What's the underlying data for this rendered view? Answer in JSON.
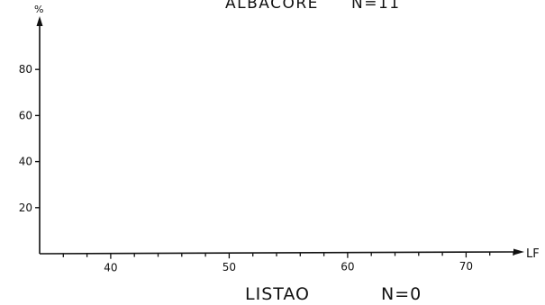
{
  "chart_data": [
    {
      "type": "bar",
      "title": "ALBACORE",
      "n_label": "N=11",
      "xlabel": "LF",
      "ylabel": "%",
      "xlim": [
        34,
        74
      ],
      "ylim": [
        0,
        100
      ],
      "x_ticks": [
        40,
        50,
        60,
        70
      ],
      "y_ticks": [
        20,
        40,
        60,
        80
      ],
      "grid": false,
      "series": []
    },
    {
      "type": "bar",
      "title": "LISTAO",
      "n_label": "N=0",
      "series": []
    }
  ]
}
